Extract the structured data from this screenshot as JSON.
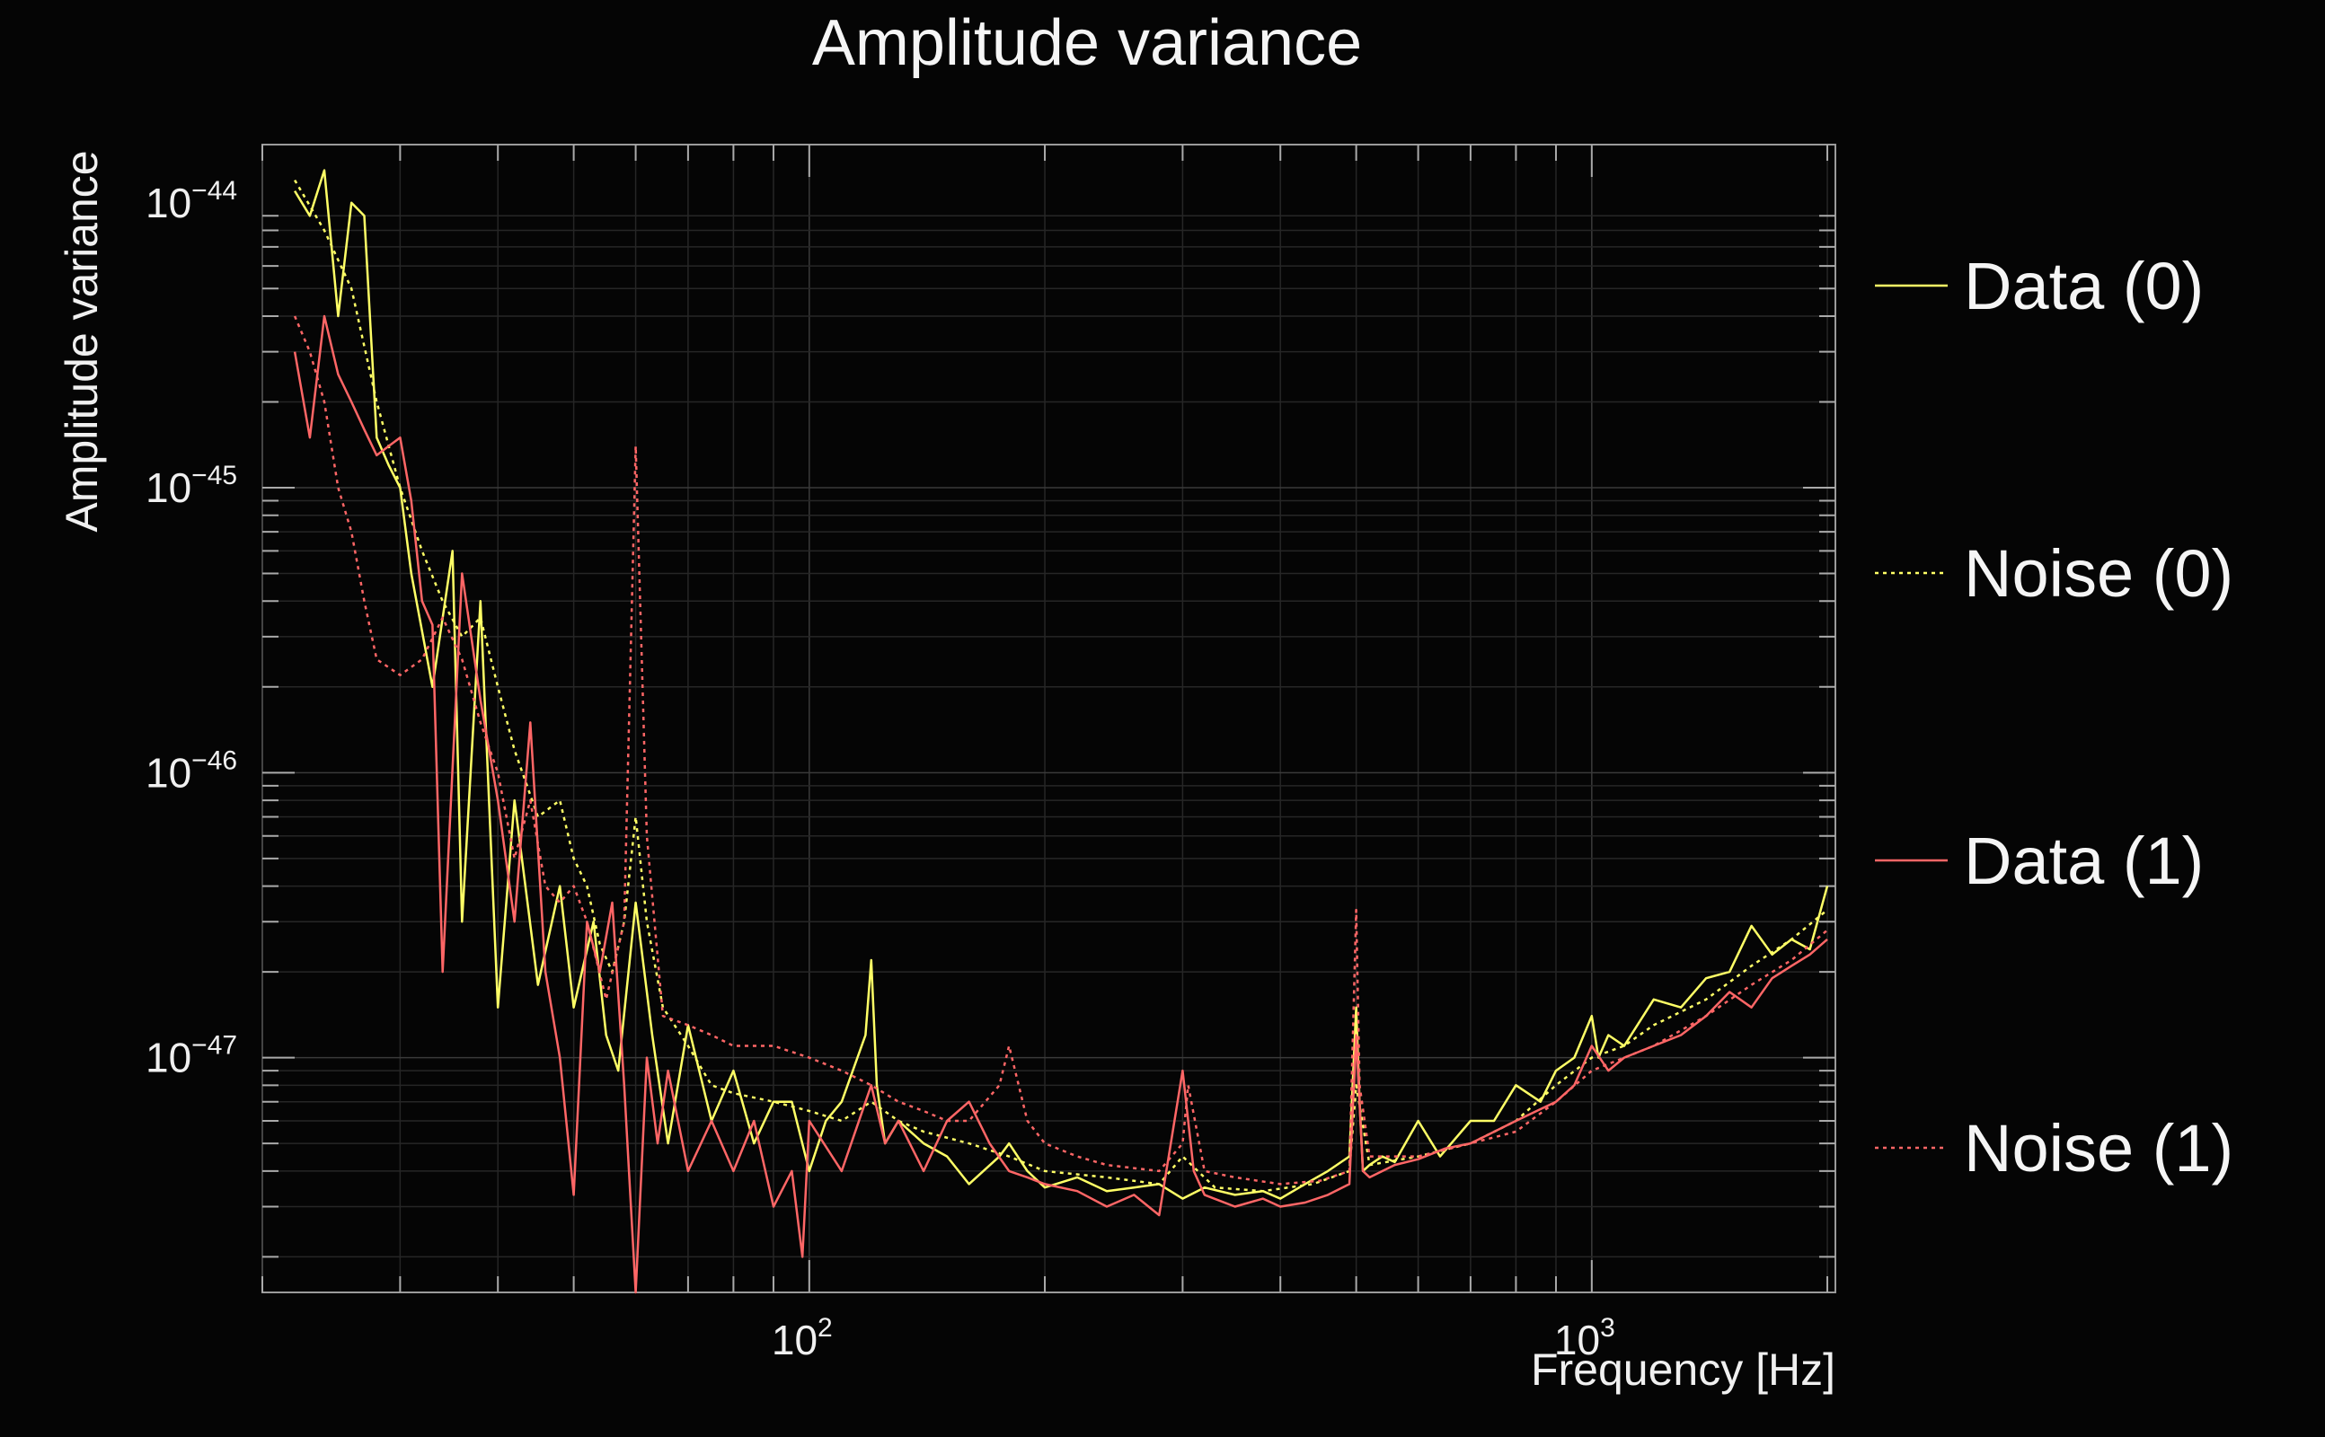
{
  "chart_data": {
    "type": "line",
    "title": "Amplitude variance",
    "xlabel": "Frequency [Hz]",
    "ylabel": "Amplitude variance",
    "x_scale": "log",
    "y_scale": "log",
    "xlim": [
      20,
      2048
    ],
    "ylim": [
      1.5e-48,
      1.6e-44
    ],
    "x_ticks": [
      {
        "base": "10",
        "exp": "2",
        "value": 100
      },
      {
        "base": "10",
        "exp": "3",
        "value": 1000
      }
    ],
    "y_ticks": [
      {
        "base": "10",
        "exp": "−44",
        "value": 1e-44
      },
      {
        "base": "10",
        "exp": "−45",
        "value": 1e-45
      },
      {
        "base": "10",
        "exp": "−46",
        "value": 1e-46
      },
      {
        "base": "10",
        "exp": "−47",
        "value": 1e-47
      }
    ],
    "grid": true,
    "legend_position": "right",
    "series": [
      {
        "name": "Data (0)",
        "color": "#ffff66",
        "dash": "solid",
        "x": [
          22,
          23,
          24,
          25,
          26,
          27,
          28,
          29,
          30,
          31,
          33,
          35,
          36,
          38,
          40,
          42,
          45,
          48,
          50,
          53,
          55,
          57,
          60,
          63,
          66,
          70,
          75,
          80,
          85,
          90,
          95,
          100,
          105,
          110,
          118,
          120,
          122,
          125,
          130,
          140,
          150,
          160,
          175,
          180,
          190,
          200,
          220,
          240,
          260,
          280,
          300,
          320,
          350,
          380,
          400,
          430,
          460,
          490,
          500,
          505,
          510,
          520,
          540,
          560,
          600,
          640,
          700,
          750,
          800,
          860,
          900,
          950,
          1000,
          1020,
          1050,
          1100,
          1200,
          1300,
          1400,
          1500,
          1600,
          1700,
          1800,
          1900,
          2000
        ],
        "y": [
          1.1e-44,
          9e-45,
          1.3e-44,
          4e-45,
          1e-44,
          9e-45,
          1.5e-45,
          1.2e-45,
          1e-45,
          5e-46,
          2e-46,
          6e-46,
          3e-47,
          4e-46,
          1.5e-47,
          8e-47,
          1.8e-47,
          4e-47,
          1.5e-47,
          3e-47,
          1.2e-47,
          9e-48,
          3.5e-47,
          1.2e-47,
          5e-48,
          1.3e-47,
          6e-48,
          9e-48,
          5e-48,
          7e-48,
          7e-48,
          4e-48,
          6e-48,
          7e-48,
          1.2e-47,
          2.2e-47,
          8e-48,
          5e-48,
          6e-48,
          5e-48,
          4.5e-48,
          3.6e-48,
          4.5e-48,
          5e-48,
          4e-48,
          3.5e-48,
          3.8e-48,
          3.4e-48,
          3.5e-48,
          3.6e-48,
          3.2e-48,
          3.5e-48,
          3.3e-48,
          3.4e-48,
          3.2e-48,
          3.6e-48,
          4e-48,
          4.5e-48,
          1.5e-47,
          7e-48,
          4e-48,
          4.2e-48,
          4.5e-48,
          4.3e-48,
          6e-48,
          4.5e-48,
          6e-48,
          6e-48,
          8e-48,
          7e-48,
          9e-48,
          1e-47,
          1.4e-47,
          1e-47,
          1.2e-47,
          1.1e-47,
          1.6e-47,
          1.5e-47,
          1.9e-47,
          2e-47,
          2.9e-47,
          2.3e-47,
          2.6e-47,
          2.4e-47,
          4e-47
        ]
      },
      {
        "name": "Noise (0)",
        "color": "#ffff66",
        "dash": "dotted",
        "x": [
          22,
          24,
          26,
          28,
          30,
          32,
          34,
          36,
          38,
          40,
          42,
          45,
          48,
          50,
          52,
          54,
          56,
          58,
          60,
          62,
          65,
          70,
          75,
          80,
          90,
          100,
          110,
          120,
          130,
          140,
          160,
          180,
          200,
          240,
          280,
          300,
          330,
          380,
          440,
          490,
          500,
          520,
          600,
          700,
          800,
          900,
          1000,
          1100,
          1200,
          1400,
          1600,
          1800,
          2000
        ],
        "y": [
          1.2e-44,
          8e-45,
          5e-45,
          2e-45,
          1e-45,
          6e-46,
          4e-46,
          3e-46,
          3.5e-46,
          2e-46,
          1.2e-46,
          7e-47,
          8e-47,
          5e-47,
          4e-47,
          2.5e-47,
          2e-47,
          3e-47,
          7e-47,
          3e-47,
          1.5e-47,
          1.1e-47,
          8e-48,
          7.5e-48,
          7e-48,
          6.5e-48,
          6e-48,
          7e-48,
          6e-48,
          5.5e-48,
          5e-48,
          4.5e-48,
          4e-48,
          3.8e-48,
          3.6e-48,
          4.5e-48,
          3.5e-48,
          3.4e-48,
          3.6e-48,
          4e-48,
          8e-48,
          4.2e-48,
          4.5e-48,
          5e-48,
          6e-48,
          8e-48,
          1e-47,
          1.1e-47,
          1.3e-47,
          1.6e-47,
          2.1e-47,
          2.6e-47,
          3.3e-47
        ]
      },
      {
        "name": "Data (1)",
        "color": "#ff6666",
        "dash": "solid",
        "x": [
          22,
          23,
          24,
          25,
          26,
          27,
          28,
          29,
          30,
          31,
          32,
          33,
          34,
          36,
          38,
          40,
          42,
          44,
          46,
          48,
          50,
          52,
          54,
          56,
          58,
          60,
          62,
          64,
          66,
          70,
          75,
          80,
          85,
          90,
          95,
          98,
          100,
          110,
          120,
          125,
          130,
          140,
          150,
          160,
          170,
          180,
          190,
          200,
          220,
          240,
          260,
          280,
          300,
          310,
          320,
          350,
          380,
          400,
          430,
          460,
          490,
          500,
          510,
          520,
          560,
          600,
          650,
          700,
          800,
          900,
          950,
          1000,
          1050,
          1100,
          1200,
          1300,
          1400,
          1500,
          1600,
          1700,
          1800,
          1900,
          2000
        ],
        "y": [
          3e-45,
          1.5e-45,
          4e-45,
          2.5e-45,
          2e-45,
          1.6e-45,
          1.3e-45,
          1.4e-45,
          1.5e-45,
          9e-46,
          4e-46,
          3.3e-46,
          2e-47,
          5e-46,
          1.8e-46,
          8e-47,
          3e-47,
          1.5e-46,
          2e-47,
          1e-47,
          3.3e-48,
          3e-47,
          2e-47,
          3.5e-47,
          8e-48,
          1.5e-48,
          1e-47,
          5e-48,
          9e-48,
          4e-48,
          6e-48,
          4e-48,
          6e-48,
          3e-48,
          4e-48,
          2e-48,
          6e-48,
          4e-48,
          8e-48,
          5e-48,
          6e-48,
          4e-48,
          6e-48,
          7e-48,
          5e-48,
          4e-48,
          3.8e-48,
          3.6e-48,
          3.4e-48,
          3e-48,
          3.3e-48,
          2.8e-48,
          9e-48,
          4e-48,
          3.3e-48,
          3e-48,
          3.2e-48,
          3e-48,
          3.1e-48,
          3.3e-48,
          3.6e-48,
          1.2e-47,
          4e-48,
          3.8e-48,
          4.2e-48,
          4.4e-48,
          4.8e-48,
          5e-48,
          6e-48,
          7e-48,
          8e-48,
          1.1e-47,
          9e-48,
          1e-47,
          1.1e-47,
          1.2e-47,
          1.4e-47,
          1.7e-47,
          1.5e-47,
          1.9e-47,
          2.1e-47,
          2.3e-47,
          2.6e-47
        ]
      },
      {
        "name": "Noise (1)",
        "color": "#ff6666",
        "dash": "dotted",
        "x": [
          22,
          23,
          24,
          25,
          26,
          27,
          28,
          30,
          32,
          34,
          36,
          38,
          40,
          42,
          44,
          46,
          48,
          50,
          52,
          55,
          58,
          60,
          62,
          65,
          70,
          75,
          80,
          90,
          100,
          110,
          120,
          130,
          140,
          150,
          160,
          175,
          180,
          190,
          200,
          220,
          240,
          280,
          300,
          305,
          320,
          350,
          400,
          450,
          490,
          500,
          505,
          520,
          600,
          700,
          800,
          900,
          1000,
          1200,
          1400,
          1600,
          1800,
          2000
        ],
        "y": [
          4e-45,
          3e-45,
          2e-45,
          1e-45,
          7e-46,
          4e-46,
          2.5e-46,
          2.2e-46,
          2.5e-46,
          3.5e-46,
          2.5e-46,
          1.5e-46,
          1e-46,
          5e-47,
          8e-47,
          4e-47,
          3.5e-47,
          4e-47,
          3e-47,
          1.6e-47,
          3e-47,
          1.4e-45,
          6e-47,
          1.4e-47,
          1.3e-47,
          1.2e-47,
          1.1e-47,
          1.1e-47,
          1e-47,
          9e-48,
          8e-48,
          7e-48,
          6.5e-48,
          6e-48,
          6e-48,
          8e-48,
          1.1e-47,
          6e-48,
          5e-48,
          4.5e-48,
          4.2e-48,
          4e-48,
          5e-48,
          8e-48,
          4e-48,
          3.8e-48,
          3.6e-48,
          3.7e-48,
          4e-48,
          3.3e-47,
          8e-48,
          4.5e-48,
          4.5e-48,
          5e-48,
          5.5e-48,
          7e-48,
          9e-48,
          1.1e-47,
          1.4e-47,
          1.8e-47,
          2.2e-47,
          2.8e-47
        ]
      }
    ]
  }
}
